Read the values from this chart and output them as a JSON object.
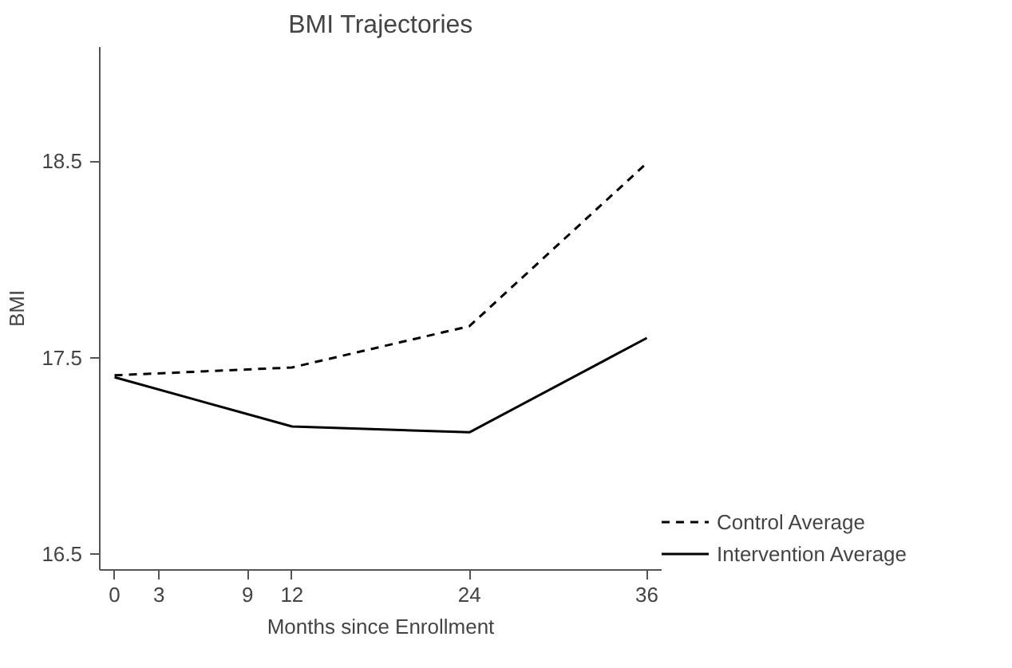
{
  "chart_data": {
    "type": "line",
    "title": "BMI Trajectories",
    "xlabel": "Months since Enrollment",
    "ylabel": "BMI",
    "x": [
      0,
      12,
      24,
      36
    ],
    "series": [
      {
        "name": "Control Average",
        "color": "#000000",
        "line_style": "dashed",
        "values": [
          17.41,
          17.45,
          17.66,
          18.49
        ]
      },
      {
        "name": "Intervention Average",
        "color": "#000000",
        "line_style": "solid",
        "values": [
          17.4,
          17.15,
          17.12,
          17.6
        ]
      }
    ],
    "xlim": [
      -1,
      37
    ],
    "ylim": [
      16.42,
      19.08
    ],
    "xticks": [
      0,
      3,
      9,
      12,
      24,
      36
    ],
    "yticks": [
      16.5,
      17.5,
      18.5
    ],
    "grid": false,
    "legend": "bottom right",
    "marker": "none"
  }
}
